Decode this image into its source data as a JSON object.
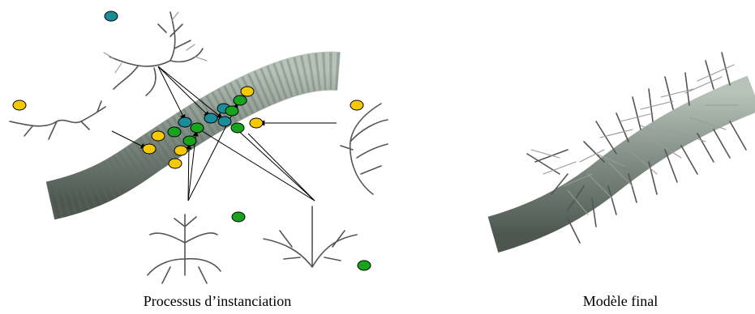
{
  "captions": [
    "Processus d’instanciation",
    "Modèle final"
  ]
}
